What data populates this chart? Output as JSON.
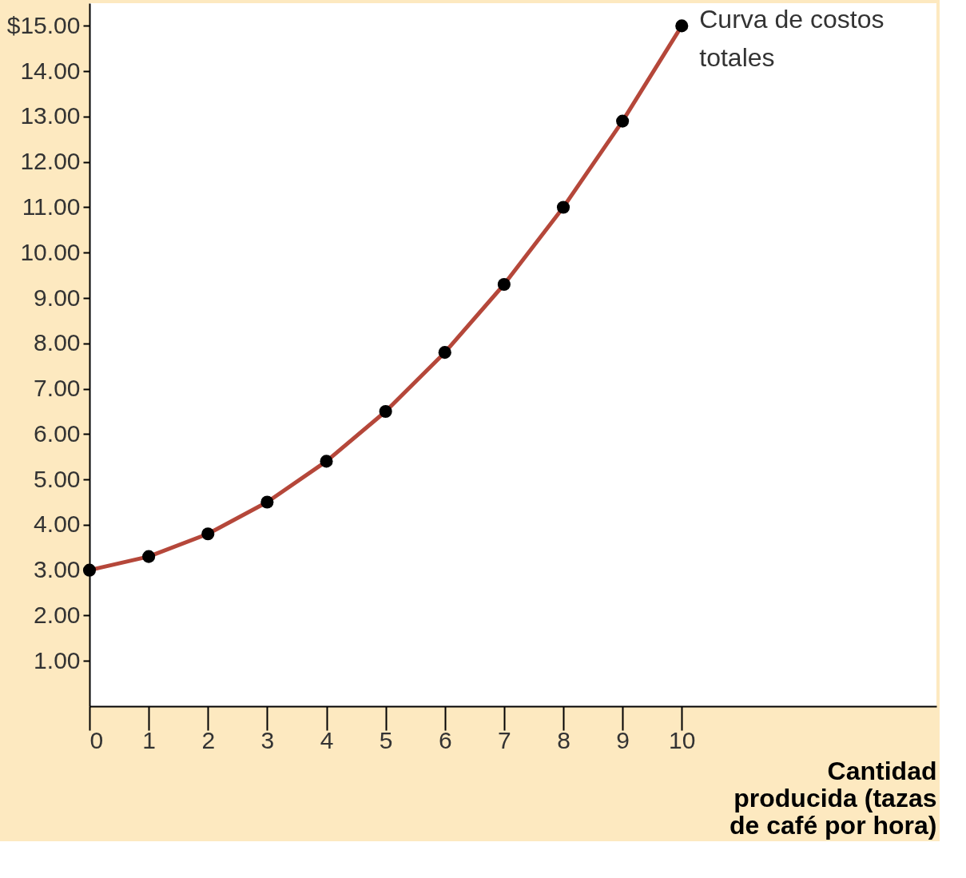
{
  "chart_data": {
    "type": "line",
    "xlabel": "Cantidad producida (tazas de café por hora)",
    "x": [
      0,
      1,
      2,
      3,
      4,
      5,
      6,
      7,
      8,
      9,
      10
    ],
    "series": [
      {
        "name": "Curva de costos totales",
        "color": "#b5473a",
        "values": [
          3.0,
          3.3,
          3.8,
          4.5,
          5.4,
          6.5,
          7.8,
          9.3,
          11.0,
          12.9,
          15.0
        ]
      }
    ],
    "xlim": [
      0,
      14.3
    ],
    "xticks": [
      0,
      1,
      2,
      3,
      4,
      5,
      6,
      7,
      8,
      9,
      10
    ],
    "ylim": [
      0,
      15.5
    ],
    "yticks": [
      {
        "value": 1,
        "label": "1.00"
      },
      {
        "value": 2,
        "label": "2.00"
      },
      {
        "value": 3,
        "label": "3.00"
      },
      {
        "value": 4,
        "label": "4.00"
      },
      {
        "value": 5,
        "label": "5.00"
      },
      {
        "value": 6,
        "label": "6.00"
      },
      {
        "value": 7,
        "label": "7.00"
      },
      {
        "value": 8,
        "label": "8.00"
      },
      {
        "value": 9,
        "label": "9.00"
      },
      {
        "value": 10,
        "label": "10.00"
      },
      {
        "value": 11,
        "label": "11.00"
      },
      {
        "value": 12,
        "label": "12.00"
      },
      {
        "value": 13,
        "label": "13.00"
      },
      {
        "value": 14,
        "label": "14.00"
      },
      {
        "value": 15,
        "label": "$15.00"
      }
    ],
    "grid": false,
    "marker": "circle",
    "line_style": "solid"
  }
}
